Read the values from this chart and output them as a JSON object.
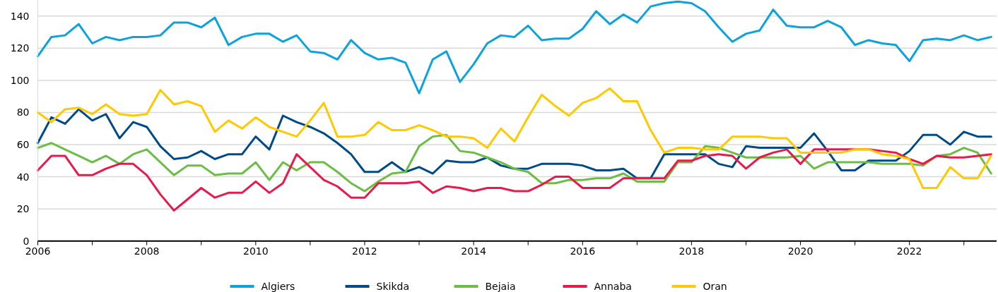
{
  "chart_data": {
    "type": "line",
    "x": [
      2006,
      2006.25,
      2006.5,
      2006.75,
      2007,
      2007.25,
      2007.5,
      2007.75,
      2008,
      2008.25,
      2008.5,
      2008.75,
      2009,
      2009.25,
      2009.5,
      2009.75,
      2010,
      2010.25,
      2010.5,
      2010.75,
      2011,
      2011.25,
      2011.5,
      2011.75,
      2012,
      2012.25,
      2012.5,
      2012.75,
      2013,
      2013.25,
      2013.5,
      2013.75,
      2014,
      2014.25,
      2014.5,
      2014.75,
      2015,
      2015.25,
      2015.5,
      2015.75,
      2016,
      2016.25,
      2016.5,
      2016.75,
      2017,
      2017.25,
      2017.5,
      2017.75,
      2018,
      2018.25,
      2018.5,
      2018.75,
      2019,
      2019.25,
      2019.5,
      2019.75,
      2020,
      2020.25,
      2020.5,
      2020.75,
      2021,
      2021.25,
      2021.5,
      2021.75,
      2022,
      2022.25,
      2022.5,
      2022.75,
      2023,
      2023.25,
      2023.5
    ],
    "series": [
      {
        "name": "Algiers",
        "color": "#0ea2dc",
        "values": [
          115,
          127,
          128,
          135,
          123,
          127,
          125,
          127,
          127,
          128,
          136,
          136,
          133,
          139,
          122,
          127,
          129,
          129,
          124,
          128,
          118,
          117,
          113,
          125,
          117,
          113,
          114,
          111,
          92,
          113,
          118,
          99,
          110,
          123,
          128,
          127,
          134,
          125,
          126,
          126,
          132,
          143,
          135,
          141,
          136,
          146,
          148,
          149,
          148,
          143,
          133,
          124,
          129,
          131,
          144,
          134,
          133,
          133,
          137,
          133,
          122,
          125,
          123,
          122,
          112,
          125,
          126,
          125,
          128,
          125,
          127
        ]
      },
      {
        "name": "Skikda",
        "color": "#004b87",
        "values": [
          61,
          77,
          73,
          82,
          75,
          79,
          64,
          74,
          71,
          59,
          51,
          52,
          56,
          51,
          54,
          54,
          65,
          57,
          78,
          74,
          71,
          67,
          61,
          54,
          43,
          43,
          49,
          43,
          46,
          42,
          50,
          49,
          49,
          52,
          47,
          45,
          45,
          48,
          48,
          48,
          47,
          44,
          44,
          45,
          39,
          39,
          54,
          54,
          54,
          54,
          48,
          46,
          59,
          58,
          58,
          58,
          58,
          67,
          56,
          44,
          44,
          50,
          50,
          50,
          56,
          66,
          66,
          60,
          68,
          65,
          65
        ]
      },
      {
        "name": "Bejaia",
        "color": "#6cbd45",
        "values": [
          58,
          61,
          57,
          53,
          49,
          53,
          48,
          54,
          57,
          49,
          41,
          47,
          47,
          41,
          42,
          42,
          49,
          38,
          49,
          44,
          49,
          49,
          43,
          36,
          31,
          37,
          42,
          43,
          59,
          65,
          66,
          56,
          55,
          52,
          49,
          45,
          43,
          36,
          36,
          38,
          38,
          39,
          39,
          42,
          37,
          37,
          37,
          49,
          49,
          59,
          58,
          55,
          52,
          52,
          52,
          52,
          53,
          45,
          49,
          49,
          49,
          49,
          48,
          48,
          48,
          47,
          53,
          54,
          58,
          55,
          42
        ]
      },
      {
        "name": "Annaba",
        "color": "#e8194b",
        "values": [
          44,
          53,
          53,
          41,
          41,
          45,
          48,
          48,
          41,
          29,
          19,
          26,
          33,
          27,
          30,
          30,
          37,
          30,
          36,
          54,
          46,
          38,
          34,
          27,
          27,
          36,
          36,
          36,
          37,
          30,
          34,
          33,
          31,
          33,
          33,
          31,
          31,
          35,
          40,
          40,
          33,
          33,
          33,
          39,
          39,
          39,
          39,
          50,
          50,
          53,
          54,
          53,
          45,
          52,
          55,
          57,
          48,
          57,
          57,
          57,
          57,
          57,
          56,
          55,
          51,
          48,
          53,
          52,
          52,
          53,
          54
        ]
      },
      {
        "name": "Oran",
        "color": "#ffc900",
        "values": [
          80,
          74,
          82,
          83,
          79,
          85,
          79,
          78,
          79,
          94,
          85,
          87,
          84,
          68,
          75,
          70,
          77,
          71,
          68,
          65,
          75,
          86,
          65,
          65,
          66,
          74,
          69,
          69,
          72,
          69,
          65,
          65,
          64,
          58,
          70,
          62,
          77,
          91,
          84,
          78,
          86,
          89,
          95,
          87,
          87,
          69,
          55,
          58,
          58,
          57,
          57,
          65,
          65,
          65,
          64,
          64,
          55,
          55,
          55,
          55,
          57,
          57,
          54,
          53,
          51,
          33,
          33,
          46,
          39,
          39,
          53
        ]
      }
    ],
    "xlim": [
      2006,
      2023.6
    ],
    "xticks": [
      2006,
      {
        "value": 2007,
        "label": null
      },
      2008,
      {
        "value": 2009,
        "label": null
      },
      2010,
      {
        "value": 2011,
        "label": null
      },
      2012,
      {
        "value": 2013,
        "label": null
      },
      2014,
      {
        "value": 2015,
        "label": null
      },
      2016,
      {
        "value": 2017,
        "label": null
      },
      2018,
      {
        "value": 2019,
        "label": null
      },
      2020,
      {
        "value": 2021,
        "label": null
      },
      2022,
      {
        "value": 2023,
        "label": null
      }
    ],
    "ylim": [
      0,
      150
    ],
    "yticks": [
      0,
      20,
      40,
      60,
      80,
      100,
      120,
      140
    ],
    "grid": "y",
    "legend": "bottom",
    "line_style": "solid",
    "marker": "none"
  }
}
